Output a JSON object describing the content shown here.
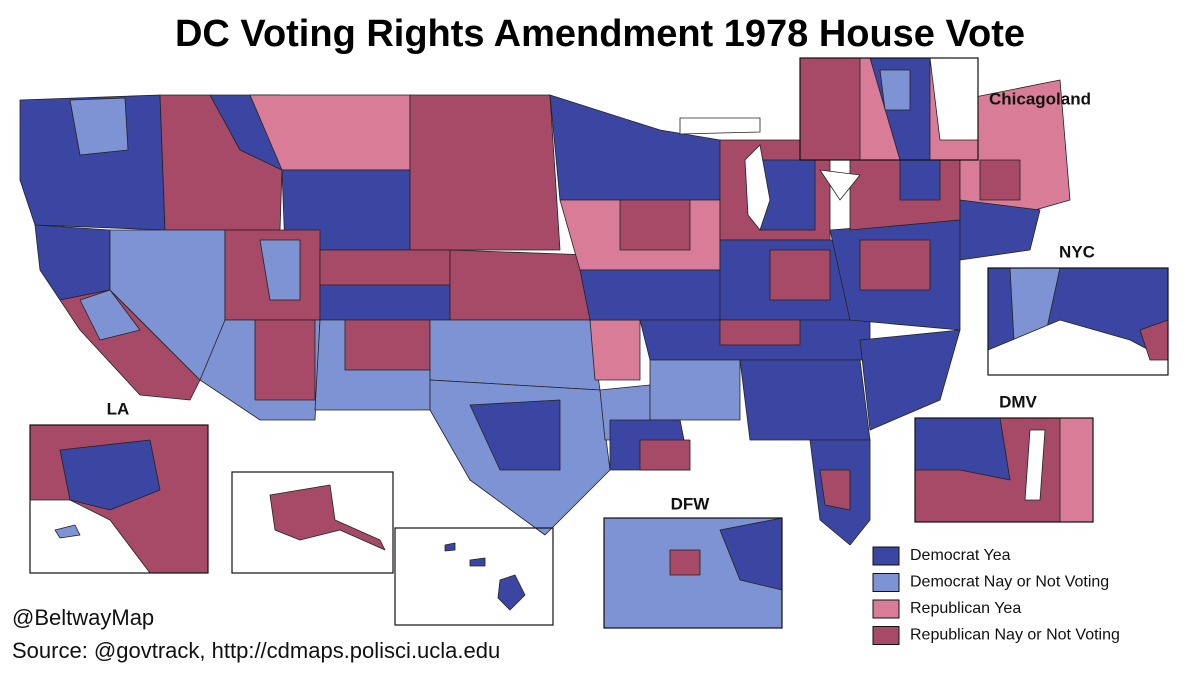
{
  "title": "DC Voting Rights Amendment 1978 House Vote",
  "insets": [
    {
      "label": "Chicagoland"
    },
    {
      "label": "NYC"
    },
    {
      "label": "DMV"
    },
    {
      "label": "LA"
    },
    {
      "label": "DFW"
    }
  ],
  "legend": [
    {
      "label": "Democrat Yea",
      "color": "#3b46a2"
    },
    {
      "label": "Democrat Nay or Not Voting",
      "color": "#7d93d3"
    },
    {
      "label": "Republican Yea",
      "color": "#d97c97"
    },
    {
      "label": "Republican Nay or Not Voting",
      "color": "#a64a67"
    }
  ],
  "credits": [
    "@BeltwayMap",
    "Source: @govtrack, http://cdmaps.polisci.ucla.edu"
  ]
}
